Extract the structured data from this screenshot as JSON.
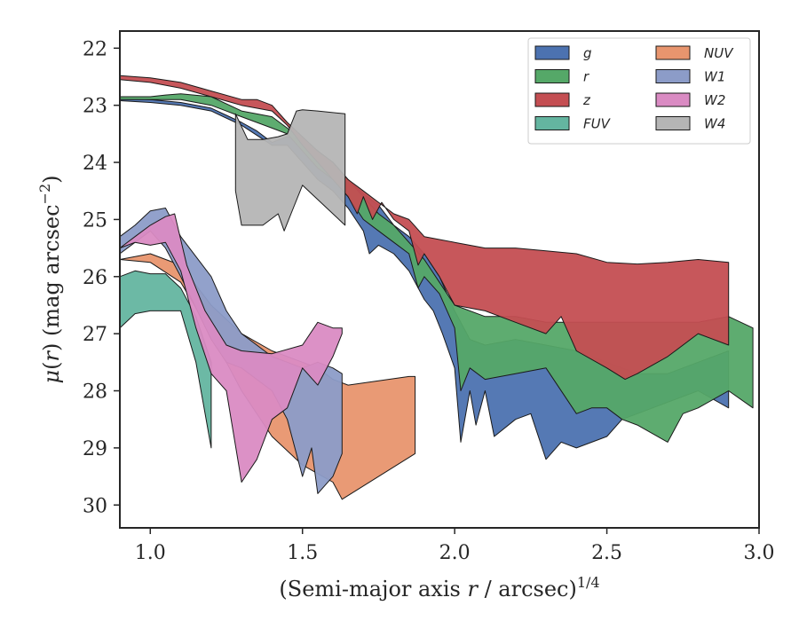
{
  "chart_data": {
    "type": "area",
    "xlabel": "(Semi-major axis r / arcsec)",
    "xlabel_prefix": "(Semi-major axis ",
    "xlabel_var": "r",
    "xlabel_suffix": " / arcsec)",
    "xlabel_exponent": "1/4",
    "ylabel": "μ(r) (mag arcsec⁻²)",
    "ylabel_prefix": "μ(",
    "ylabel_var": "r",
    "ylabel_suffix": ") (mag arcsec",
    "ylabel_exponent": "−2",
    "ylabel_close": ")",
    "xlim": [
      0.9,
      3.0
    ],
    "ylim": [
      30.4,
      21.7
    ],
    "y_inverted": true,
    "xticks": [
      1.0,
      1.5,
      2.0,
      2.5,
      3.0
    ],
    "xtick_labels": [
      "1.0",
      "1.5",
      "2.0",
      "2.5",
      "3.0"
    ],
    "yticks": [
      22,
      23,
      24,
      25,
      26,
      27,
      28,
      29,
      30
    ],
    "ytick_labels": [
      "22",
      "23",
      "24",
      "25",
      "26",
      "27",
      "28",
      "29",
      "30"
    ],
    "grid": false,
    "legend_position": "top-right",
    "legend_columns": 2,
    "series": [
      {
        "name": "g",
        "color": "#4C72B0",
        "upper": [
          [
            0.9,
            22.88
          ],
          [
            1.0,
            22.9
          ],
          [
            1.1,
            22.95
          ],
          [
            1.2,
            23.05
          ],
          [
            1.3,
            23.3
          ],
          [
            1.35,
            23.45
          ],
          [
            1.4,
            23.65
          ],
          [
            1.45,
            23.55
          ],
          [
            1.5,
            23.6
          ],
          [
            1.55,
            23.8
          ],
          [
            1.6,
            24.0
          ],
          [
            1.65,
            24.3
          ],
          [
            1.7,
            24.55
          ],
          [
            1.75,
            24.75
          ],
          [
            1.8,
            25.1
          ],
          [
            1.85,
            25.3
          ],
          [
            1.9,
            25.6
          ],
          [
            1.95,
            26.0
          ],
          [
            2.0,
            26.6
          ],
          [
            2.05,
            27.1
          ],
          [
            2.1,
            27.2
          ],
          [
            2.2,
            27.1
          ],
          [
            2.3,
            27.2
          ],
          [
            2.4,
            27.3
          ],
          [
            2.5,
            27.5
          ],
          [
            2.6,
            27.7
          ],
          [
            2.7,
            27.7
          ],
          [
            2.8,
            27.5
          ],
          [
            2.9,
            27.3
          ]
        ],
        "lower": [
          [
            0.9,
            22.92
          ],
          [
            1.0,
            22.95
          ],
          [
            1.1,
            23.0
          ],
          [
            1.2,
            23.1
          ],
          [
            1.3,
            23.35
          ],
          [
            1.4,
            23.7
          ],
          [
            1.45,
            23.7
          ],
          [
            1.5,
            24.0
          ],
          [
            1.55,
            24.3
          ],
          [
            1.6,
            24.5
          ],
          [
            1.65,
            24.8
          ],
          [
            1.7,
            25.2
          ],
          [
            1.72,
            25.6
          ],
          [
            1.75,
            25.45
          ],
          [
            1.8,
            25.6
          ],
          [
            1.85,
            25.9
          ],
          [
            1.9,
            26.4
          ],
          [
            1.93,
            26.6
          ],
          [
            1.96,
            27.0
          ],
          [
            2.0,
            27.6
          ],
          [
            2.02,
            28.9
          ],
          [
            2.05,
            28.0
          ],
          [
            2.07,
            28.6
          ],
          [
            2.1,
            28.0
          ],
          [
            2.13,
            28.8
          ],
          [
            2.2,
            28.5
          ],
          [
            2.25,
            28.4
          ],
          [
            2.3,
            29.2
          ],
          [
            2.35,
            28.9
          ],
          [
            2.4,
            29.0
          ],
          [
            2.5,
            28.8
          ],
          [
            2.55,
            28.5
          ],
          [
            2.6,
            28.4
          ],
          [
            2.7,
            28.2
          ],
          [
            2.8,
            28.0
          ],
          [
            2.9,
            28.3
          ]
        ]
      },
      {
        "name": "r",
        "color": "#55A868",
        "upper": [
          [
            0.9,
            22.85
          ],
          [
            1.0,
            22.85
          ],
          [
            1.05,
            22.82
          ],
          [
            1.1,
            22.8
          ],
          [
            1.2,
            22.85
          ],
          [
            1.3,
            23.1
          ],
          [
            1.4,
            23.2
          ],
          [
            1.45,
            23.4
          ],
          [
            1.5,
            23.6
          ],
          [
            1.55,
            23.8
          ],
          [
            1.6,
            24.0
          ],
          [
            1.65,
            24.3
          ],
          [
            1.7,
            24.6
          ],
          [
            1.75,
            24.9
          ],
          [
            1.8,
            25.1
          ],
          [
            1.85,
            25.4
          ],
          [
            1.9,
            25.7
          ],
          [
            1.95,
            26.1
          ],
          [
            2.0,
            26.5
          ],
          [
            2.1,
            26.7
          ],
          [
            2.2,
            26.7
          ],
          [
            2.3,
            26.8
          ],
          [
            2.4,
            26.8
          ],
          [
            2.5,
            26.8
          ],
          [
            2.6,
            26.8
          ],
          [
            2.7,
            26.8
          ],
          [
            2.8,
            26.8
          ],
          [
            2.9,
            26.7
          ],
          [
            2.98,
            26.9
          ]
        ],
        "lower": [
          [
            0.9,
            22.9
          ],
          [
            1.0,
            22.9
          ],
          [
            1.1,
            22.9
          ],
          [
            1.2,
            23.0
          ],
          [
            1.3,
            23.2
          ],
          [
            1.4,
            23.4
          ],
          [
            1.45,
            23.5
          ],
          [
            1.5,
            23.8
          ],
          [
            1.55,
            24.1
          ],
          [
            1.6,
            24.3
          ],
          [
            1.65,
            24.6
          ],
          [
            1.7,
            25.0
          ],
          [
            1.75,
            25.2
          ],
          [
            1.8,
            25.4
          ],
          [
            1.85,
            25.6
          ],
          [
            1.88,
            26.2
          ],
          [
            1.9,
            26.0
          ],
          [
            1.95,
            26.3
          ],
          [
            2.0,
            26.9
          ],
          [
            2.02,
            28.0
          ],
          [
            2.05,
            27.6
          ],
          [
            2.1,
            27.8
          ],
          [
            2.2,
            27.7
          ],
          [
            2.3,
            27.6
          ],
          [
            2.4,
            28.4
          ],
          [
            2.45,
            28.3
          ],
          [
            2.5,
            28.3
          ],
          [
            2.55,
            28.5
          ],
          [
            2.6,
            28.6
          ],
          [
            2.7,
            28.9
          ],
          [
            2.75,
            28.4
          ],
          [
            2.8,
            28.3
          ],
          [
            2.9,
            28.0
          ],
          [
            2.98,
            28.3
          ]
        ]
      },
      {
        "name": "z",
        "color": "#C44E52",
        "upper": [
          [
            0.9,
            22.48
          ],
          [
            1.0,
            22.52
          ],
          [
            1.1,
            22.6
          ],
          [
            1.2,
            22.75
          ],
          [
            1.3,
            22.9
          ],
          [
            1.35,
            22.9
          ],
          [
            1.4,
            23.0
          ],
          [
            1.45,
            23.3
          ],
          [
            1.5,
            23.55
          ],
          [
            1.55,
            23.8
          ],
          [
            1.6,
            24.0
          ],
          [
            1.65,
            24.3
          ],
          [
            1.7,
            24.5
          ],
          [
            1.75,
            24.7
          ],
          [
            1.8,
            24.9
          ],
          [
            1.85,
            25.0
          ],
          [
            1.9,
            25.3
          ],
          [
            2.0,
            25.4
          ],
          [
            2.1,
            25.5
          ],
          [
            2.2,
            25.5
          ],
          [
            2.3,
            25.55
          ],
          [
            2.4,
            25.6
          ],
          [
            2.5,
            25.75
          ],
          [
            2.6,
            25.78
          ],
          [
            2.7,
            25.75
          ],
          [
            2.8,
            25.7
          ],
          [
            2.9,
            25.75
          ]
        ],
        "lower": [
          [
            0.9,
            22.55
          ],
          [
            1.0,
            22.6
          ],
          [
            1.1,
            22.7
          ],
          [
            1.2,
            22.85
          ],
          [
            1.3,
            23.0
          ],
          [
            1.4,
            23.1
          ],
          [
            1.45,
            23.35
          ],
          [
            1.5,
            23.7
          ],
          [
            1.55,
            24.0
          ],
          [
            1.6,
            24.3
          ],
          [
            1.65,
            24.6
          ],
          [
            1.68,
            24.9
          ],
          [
            1.7,
            24.6
          ],
          [
            1.73,
            25.0
          ],
          [
            1.76,
            24.7
          ],
          [
            1.8,
            25.0
          ],
          [
            1.85,
            25.2
          ],
          [
            1.88,
            25.8
          ],
          [
            1.9,
            25.6
          ],
          [
            1.95,
            26.0
          ],
          [
            2.0,
            26.5
          ],
          [
            2.1,
            26.6
          ],
          [
            2.2,
            26.8
          ],
          [
            2.3,
            27.0
          ],
          [
            2.35,
            26.7
          ],
          [
            2.4,
            27.3
          ],
          [
            2.5,
            27.6
          ],
          [
            2.56,
            27.8
          ],
          [
            2.6,
            27.7
          ],
          [
            2.7,
            27.4
          ],
          [
            2.8,
            27.0
          ],
          [
            2.9,
            27.2
          ]
        ]
      },
      {
        "name": "FUV",
        "color": "#64B5A0",
        "upper": [
          [
            0.9,
            26.0
          ],
          [
            0.95,
            25.9
          ],
          [
            1.0,
            25.95
          ],
          [
            1.05,
            25.95
          ],
          [
            1.1,
            26.2
          ],
          [
            1.15,
            26.7
          ],
          [
            1.2,
            27.5
          ]
        ],
        "lower": [
          [
            0.9,
            26.9
          ],
          [
            0.95,
            26.65
          ],
          [
            1.0,
            26.6
          ],
          [
            1.05,
            26.6
          ],
          [
            1.1,
            26.6
          ],
          [
            1.15,
            27.5
          ],
          [
            1.2,
            29.0
          ]
        ]
      },
      {
        "name": "NUV",
        "color": "#E8956E",
        "upper": [
          [
            0.9,
            25.7
          ],
          [
            1.0,
            25.6
          ],
          [
            1.1,
            25.8
          ],
          [
            1.2,
            26.5
          ],
          [
            1.3,
            27.0
          ],
          [
            1.4,
            27.3
          ],
          [
            1.5,
            27.5
          ],
          [
            1.55,
            27.6
          ],
          [
            1.6,
            27.8
          ],
          [
            1.65,
            27.9
          ],
          [
            1.85,
            27.75
          ],
          [
            1.87,
            27.75
          ]
        ],
        "lower": [
          [
            0.9,
            25.7
          ],
          [
            1.0,
            25.75
          ],
          [
            1.1,
            26.1
          ],
          [
            1.2,
            27.0
          ],
          [
            1.3,
            28.0
          ],
          [
            1.4,
            28.8
          ],
          [
            1.5,
            29.3
          ],
          [
            1.6,
            29.6
          ],
          [
            1.63,
            29.9
          ],
          [
            1.87,
            29.1
          ]
        ]
      },
      {
        "name": "W1",
        "color": "#8C9CC8",
        "upper": [
          [
            0.9,
            25.3
          ],
          [
            0.95,
            25.1
          ],
          [
            1.0,
            24.85
          ],
          [
            1.05,
            24.8
          ],
          [
            1.1,
            25.3
          ],
          [
            1.2,
            26.0
          ],
          [
            1.25,
            26.6
          ],
          [
            1.3,
            27.0
          ],
          [
            1.4,
            27.4
          ],
          [
            1.5,
            27.6
          ],
          [
            1.55,
            27.5
          ],
          [
            1.6,
            27.6
          ],
          [
            1.63,
            27.7
          ]
        ],
        "lower": [
          [
            0.9,
            25.6
          ],
          [
            0.95,
            25.4
          ],
          [
            1.0,
            25.2
          ],
          [
            1.05,
            25.5
          ],
          [
            1.1,
            26.0
          ],
          [
            1.2,
            27.1
          ],
          [
            1.25,
            27.5
          ],
          [
            1.3,
            27.6
          ],
          [
            1.4,
            28.0
          ],
          [
            1.45,
            28.5
          ],
          [
            1.5,
            29.5
          ],
          [
            1.53,
            29.0
          ],
          [
            1.55,
            29.8
          ],
          [
            1.6,
            29.5
          ],
          [
            1.63,
            29.1
          ]
        ]
      },
      {
        "name": "W2",
        "color": "#DA8BC3",
        "upper": [
          [
            0.9,
            25.5
          ],
          [
            0.95,
            25.3
          ],
          [
            1.0,
            25.1
          ],
          [
            1.05,
            24.95
          ],
          [
            1.08,
            24.9
          ],
          [
            1.12,
            25.8
          ],
          [
            1.18,
            26.6
          ],
          [
            1.25,
            27.2
          ],
          [
            1.3,
            27.3
          ],
          [
            1.4,
            27.35
          ],
          [
            1.5,
            27.2
          ],
          [
            1.55,
            26.8
          ],
          [
            1.6,
            26.9
          ],
          [
            1.63,
            26.9
          ]
        ],
        "lower": [
          [
            0.9,
            25.5
          ],
          [
            0.95,
            25.4
          ],
          [
            1.0,
            25.45
          ],
          [
            1.05,
            25.4
          ],
          [
            1.1,
            25.9
          ],
          [
            1.15,
            26.9
          ],
          [
            1.2,
            27.7
          ],
          [
            1.25,
            28.0
          ],
          [
            1.3,
            29.6
          ],
          [
            1.35,
            29.2
          ],
          [
            1.4,
            28.5
          ],
          [
            1.45,
            28.3
          ],
          [
            1.5,
            27.6
          ],
          [
            1.55,
            27.9
          ],
          [
            1.6,
            27.4
          ],
          [
            1.63,
            27.0
          ]
        ]
      },
      {
        "name": "W4",
        "color": "#B5B5B5",
        "upper": [
          [
            1.28,
            23.15
          ],
          [
            1.32,
            23.6
          ],
          [
            1.37,
            23.6
          ],
          [
            1.42,
            23.55
          ],
          [
            1.45,
            23.5
          ],
          [
            1.48,
            23.1
          ],
          [
            1.5,
            23.08
          ],
          [
            1.55,
            23.1
          ],
          [
            1.64,
            23.15
          ]
        ],
        "lower": [
          [
            1.28,
            24.5
          ],
          [
            1.3,
            25.1
          ],
          [
            1.37,
            25.1
          ],
          [
            1.42,
            24.9
          ],
          [
            1.44,
            25.2
          ],
          [
            1.47,
            24.8
          ],
          [
            1.5,
            24.4
          ],
          [
            1.56,
            24.7
          ],
          [
            1.64,
            25.1
          ]
        ]
      }
    ]
  }
}
